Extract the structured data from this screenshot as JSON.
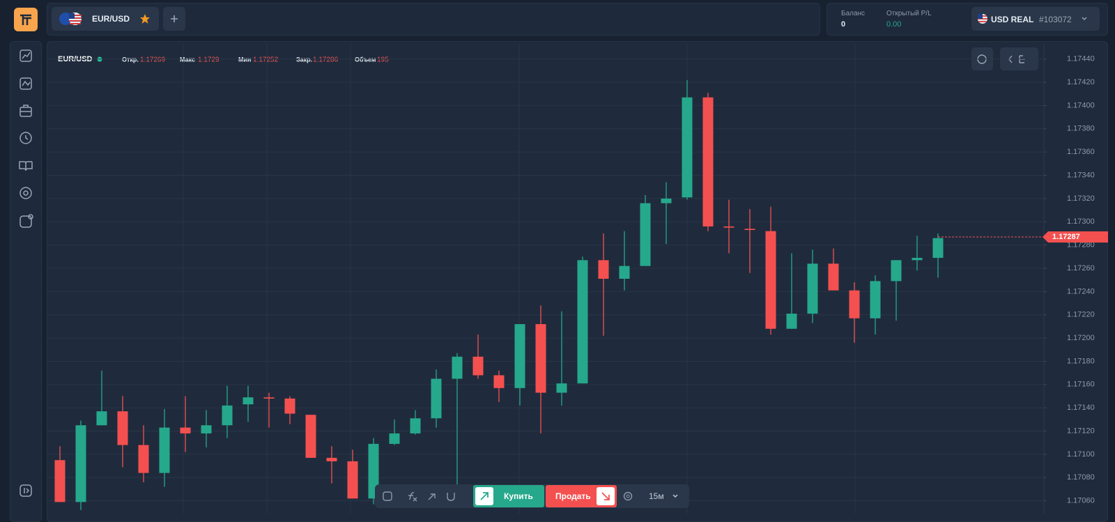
{
  "header": {
    "pair": "EUR/USD",
    "balance_label": "Баланс",
    "balance": "0",
    "pl_label": "Открытый P/L",
    "pl": "0.00",
    "account": "USD REAL",
    "account_id": "#103072"
  },
  "chart_header": {
    "symbol": "EUR/USD",
    "stats": [
      {
        "label": "Откр.",
        "value": "1.17269"
      },
      {
        "label": "Макс",
        "value": "1.1729"
      },
      {
        "label": "Мин",
        "value": "1.17252"
      },
      {
        "label": "Закр.",
        "value": "1.17286"
      },
      {
        "label": "Объем",
        "value": "195"
      }
    ]
  },
  "toolbar": {
    "buy": "Купить",
    "sell": "Продать",
    "timeframe": "15м"
  },
  "chart_data": {
    "type": "candlestick",
    "up_color": "#26a88c",
    "down_color": "#f45050",
    "grid": true,
    "ylim": [
      1.17049,
      1.17453
    ],
    "yticks": [
      {
        "value": 1.1706,
        "label": "1.17060"
      },
      {
        "value": 1.1708,
        "label": "1.17080"
      },
      {
        "value": 1.171,
        "label": "1.17100"
      },
      {
        "value": 1.1712,
        "label": "1.17120"
      },
      {
        "value": 1.1714,
        "label": "1.17140"
      },
      {
        "value": 1.1716,
        "label": "1.17160"
      },
      {
        "value": 1.1718,
        "label": "1.17180"
      },
      {
        "value": 1.172,
        "label": "1.17200"
      },
      {
        "value": 1.1722,
        "label": "1.17220"
      },
      {
        "value": 1.1724,
        "label": "1.17240"
      },
      {
        "value": 1.1726,
        "label": "1.17260"
      },
      {
        "value": 1.1728,
        "label": "1.17280"
      },
      {
        "value": 1.173,
        "label": "1.17300"
      },
      {
        "value": 1.1732,
        "label": "1.17320"
      },
      {
        "value": 1.1734,
        "label": "1.17340"
      },
      {
        "value": 1.1736,
        "label": "1.17360"
      },
      {
        "value": 1.1738,
        "label": "1.17380"
      },
      {
        "value": 1.174,
        "label": "1.17400"
      },
      {
        "value": 1.1742,
        "label": "1.17420"
      },
      {
        "value": 1.1744,
        "label": "1.17440"
      }
    ],
    "open": [
      1.17095,
      1.17059,
      1.17125,
      1.17137,
      1.17108,
      1.17084,
      1.17123,
      1.17118,
      1.17125,
      1.17143,
      1.17149,
      1.17148,
      1.17134,
      1.17097,
      1.17094,
      1.17062,
      1.17109,
      1.17118,
      1.17131,
      1.17165,
      1.17184,
      1.17168,
      1.17157,
      1.17212,
      1.17153,
      1.17161,
      1.17267,
      1.17251,
      1.17262,
      1.17316,
      1.17321,
      1.17407,
      1.17296,
      1.17294,
      1.17292,
      1.17208,
      1.17221,
      1.17264,
      1.17241,
      1.17217,
      1.17249,
      1.17267,
      1.17269
    ],
    "high": [
      1.17107,
      1.17129,
      1.17172,
      1.1715,
      1.17125,
      1.17139,
      1.1715,
      1.17138,
      1.17159,
      1.17159,
      1.17153,
      1.1715,
      1.17134,
      1.17107,
      1.17104,
      1.17114,
      1.1713,
      1.17138,
      1.17173,
      1.17187,
      1.17203,
      1.17172,
      1.17212,
      1.17228,
      1.17223,
      1.1727,
      1.1729,
      1.17292,
      1.17323,
      1.17334,
      1.17422,
      1.17411,
      1.17319,
      1.17311,
      1.17313,
      1.17273,
      1.17276,
      1.17277,
      1.17248,
      1.17254,
      1.17267,
      1.17288,
      1.1729
    ],
    "low": [
      1.17059,
      1.17052,
      1.17125,
      1.17089,
      1.17076,
      1.17072,
      1.17102,
      1.17106,
      1.17114,
      1.17128,
      1.17123,
      1.17126,
      1.17097,
      1.17075,
      1.17062,
      1.17057,
      1.17108,
      1.17117,
      1.17123,
      1.17069,
      1.17165,
      1.17145,
      1.17142,
      1.17118,
      1.17142,
      1.17161,
      1.17202,
      1.17241,
      1.17262,
      1.17281,
      1.17319,
      1.17292,
      1.17273,
      1.17256,
      1.17203,
      1.17208,
      1.17213,
      1.17241,
      1.17196,
      1.17203,
      1.17215,
      1.17258,
      1.17252
    ],
    "close": [
      1.17059,
      1.17125,
      1.17137,
      1.17108,
      1.17084,
      1.17123,
      1.17118,
      1.17125,
      1.17142,
      1.17149,
      1.17148,
      1.17135,
      1.17097,
      1.17094,
      1.17062,
      1.17109,
      1.17118,
      1.17131,
      1.17165,
      1.17184,
      1.17168,
      1.17157,
      1.17212,
      1.17153,
      1.17161,
      1.17267,
      1.17251,
      1.17262,
      1.17316,
      1.1732,
      1.17407,
      1.17296,
      1.17295,
      1.17293,
      1.17208,
      1.17221,
      1.17264,
      1.17241,
      1.17217,
      1.17249,
      1.17267,
      1.17269,
      1.17286
    ],
    "last_price": 1.17287
  }
}
